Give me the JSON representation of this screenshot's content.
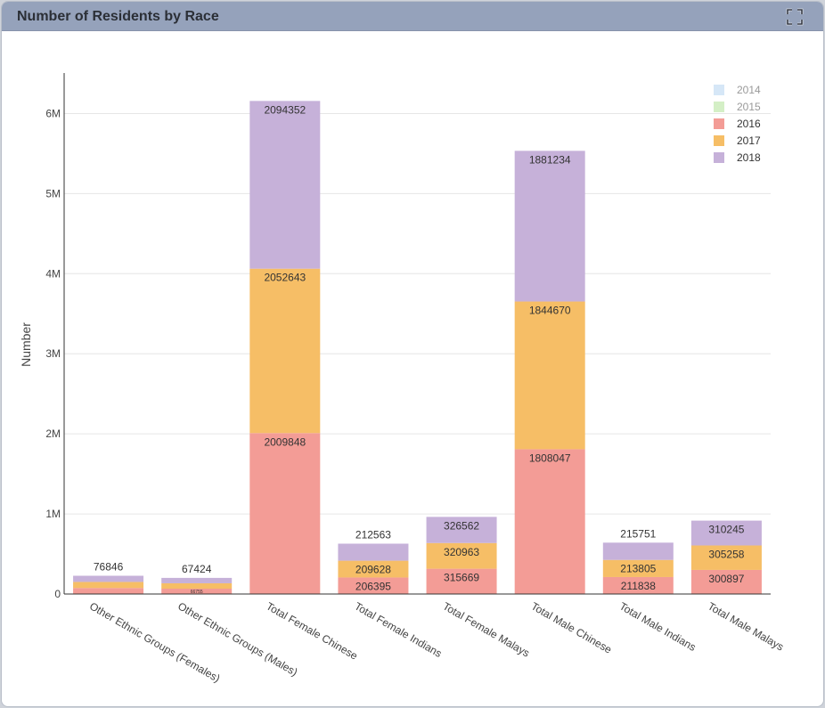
{
  "panel": {
    "title": "Number of Residents by Race",
    "expand_icon": "expand-icon"
  },
  "chart_data": {
    "type": "bar",
    "stacked": true,
    "title": "",
    "xlabel": "",
    "ylabel": "Number",
    "ylim": [
      0,
      6500000
    ],
    "yticks": [
      0,
      1000000,
      2000000,
      3000000,
      4000000,
      5000000,
      6000000
    ],
    "ytick_labels": [
      "0",
      "1M",
      "2M",
      "3M",
      "4M",
      "5M",
      "6M"
    ],
    "grid": true,
    "legend_position": "top-right",
    "categories": [
      "Other Ethnic Groups (Females)",
      "Other Ethnic Groups (Males)",
      "Total Female Chinese",
      "Total Female Indians",
      "Total Female Malays",
      "Total Male Chinese",
      "Total Male Indians",
      "Total Male Malays"
    ],
    "series": [
      {
        "name": "2014",
        "color": "#d6e7f7",
        "hidden": true,
        "values": [
          null,
          null,
          null,
          null,
          null,
          null,
          null,
          null
        ]
      },
      {
        "name": "2015",
        "color": "#d4efc6",
        "hidden": true,
        "values": [
          null,
          null,
          null,
          null,
          null,
          null,
          null,
          null
        ]
      },
      {
        "name": "2016",
        "color": "#f39c96",
        "hidden": false,
        "values": [
          75000,
          66755,
          2009848,
          206395,
          315669,
          1808047,
          211838,
          300897
        ]
      },
      {
        "name": "2017",
        "color": "#f6be66",
        "hidden": false,
        "values": [
          76000,
          67100,
          2052643,
          209628,
          320963,
          1844670,
          213805,
          305258
        ]
      },
      {
        "name": "2018",
        "color": "#c6b1d9",
        "hidden": false,
        "values": [
          76846,
          67424,
          2094352,
          212563,
          326562,
          1881234,
          215751,
          310245
        ]
      }
    ],
    "data_labels": [
      [
        null,
        null,
        "76846"
      ],
      [
        "66755",
        null,
        "67424"
      ],
      [
        "2009848",
        "2052643",
        "2094352"
      ],
      [
        "206395",
        "209628",
        "212563"
      ],
      [
        "315669",
        "320963",
        "326562"
      ],
      [
        "1808047",
        "1844670",
        "1881234"
      ],
      [
        "211838",
        "213805",
        "215751"
      ],
      [
        "300897",
        "305258",
        "310245"
      ]
    ]
  }
}
